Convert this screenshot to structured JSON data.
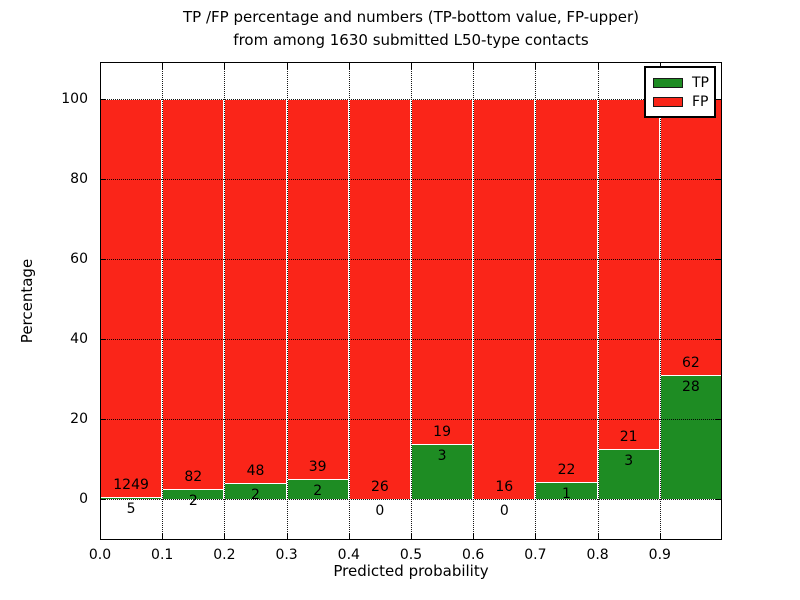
{
  "title": {
    "line1": "TP /FP percentage and numbers (TP-bottom value, FP-upper)",
    "line2": "from among 1630 submitted L50-type contacts"
  },
  "axes": {
    "xlabel": "Predicted probability",
    "ylabel": "Percentage",
    "ytick_labels": [
      "0",
      "20",
      "40",
      "60",
      "80",
      "100"
    ],
    "ytick_values": [
      0,
      20,
      40,
      60,
      80,
      100
    ],
    "xtick_labels": [
      "0.0",
      "0.1",
      "0.2",
      "0.3",
      "0.4",
      "0.5",
      "0.6",
      "0.7",
      "0.8",
      "0.9"
    ],
    "xtick_values": [
      0.0,
      0.1,
      0.2,
      0.3,
      0.4,
      0.5,
      0.6,
      0.7,
      0.8,
      0.9
    ],
    "grid": "dotted"
  },
  "legend": {
    "position": "upper right",
    "items": [
      {
        "label": "TP",
        "color": "#1e8c23"
      },
      {
        "label": "FP",
        "color": "#fa2519"
      }
    ]
  },
  "colors": {
    "tp_green": "#1e8c23",
    "fp_red": "#fa2519",
    "bar_edge": "#ffffff",
    "text": "#000000"
  },
  "chart_data": {
    "type": "bar",
    "stacked": true,
    "normalized_to_percent": true,
    "title": "TP /FP percentage and numbers (TP-bottom value, FP-upper) from among 1630 submitted L50-type contacts",
    "xlabel": "Predicted probability",
    "ylabel": "Percentage",
    "xlim": [
      0.0,
      1.0
    ],
    "ylim_displayed": [
      0,
      100
    ],
    "bin_width": 0.1,
    "bin_starts": [
      0.0,
      0.1,
      0.2,
      0.3,
      0.4,
      0.5,
      0.6,
      0.7,
      0.8,
      0.9
    ],
    "series": [
      {
        "name": "TP",
        "counts": [
          5,
          2,
          2,
          2,
          0,
          3,
          0,
          1,
          3,
          28
        ]
      },
      {
        "name": "FP",
        "counts": [
          1249,
          82,
          48,
          39,
          26,
          19,
          16,
          22,
          21,
          62
        ]
      }
    ],
    "tp_percent_per_bin": [
      0.4,
      2.38,
      4.0,
      4.88,
      0.0,
      13.64,
      0.0,
      4.35,
      12.5,
      31.11
    ],
    "total_contacts": 1630,
    "legend_position": "upper right"
  }
}
